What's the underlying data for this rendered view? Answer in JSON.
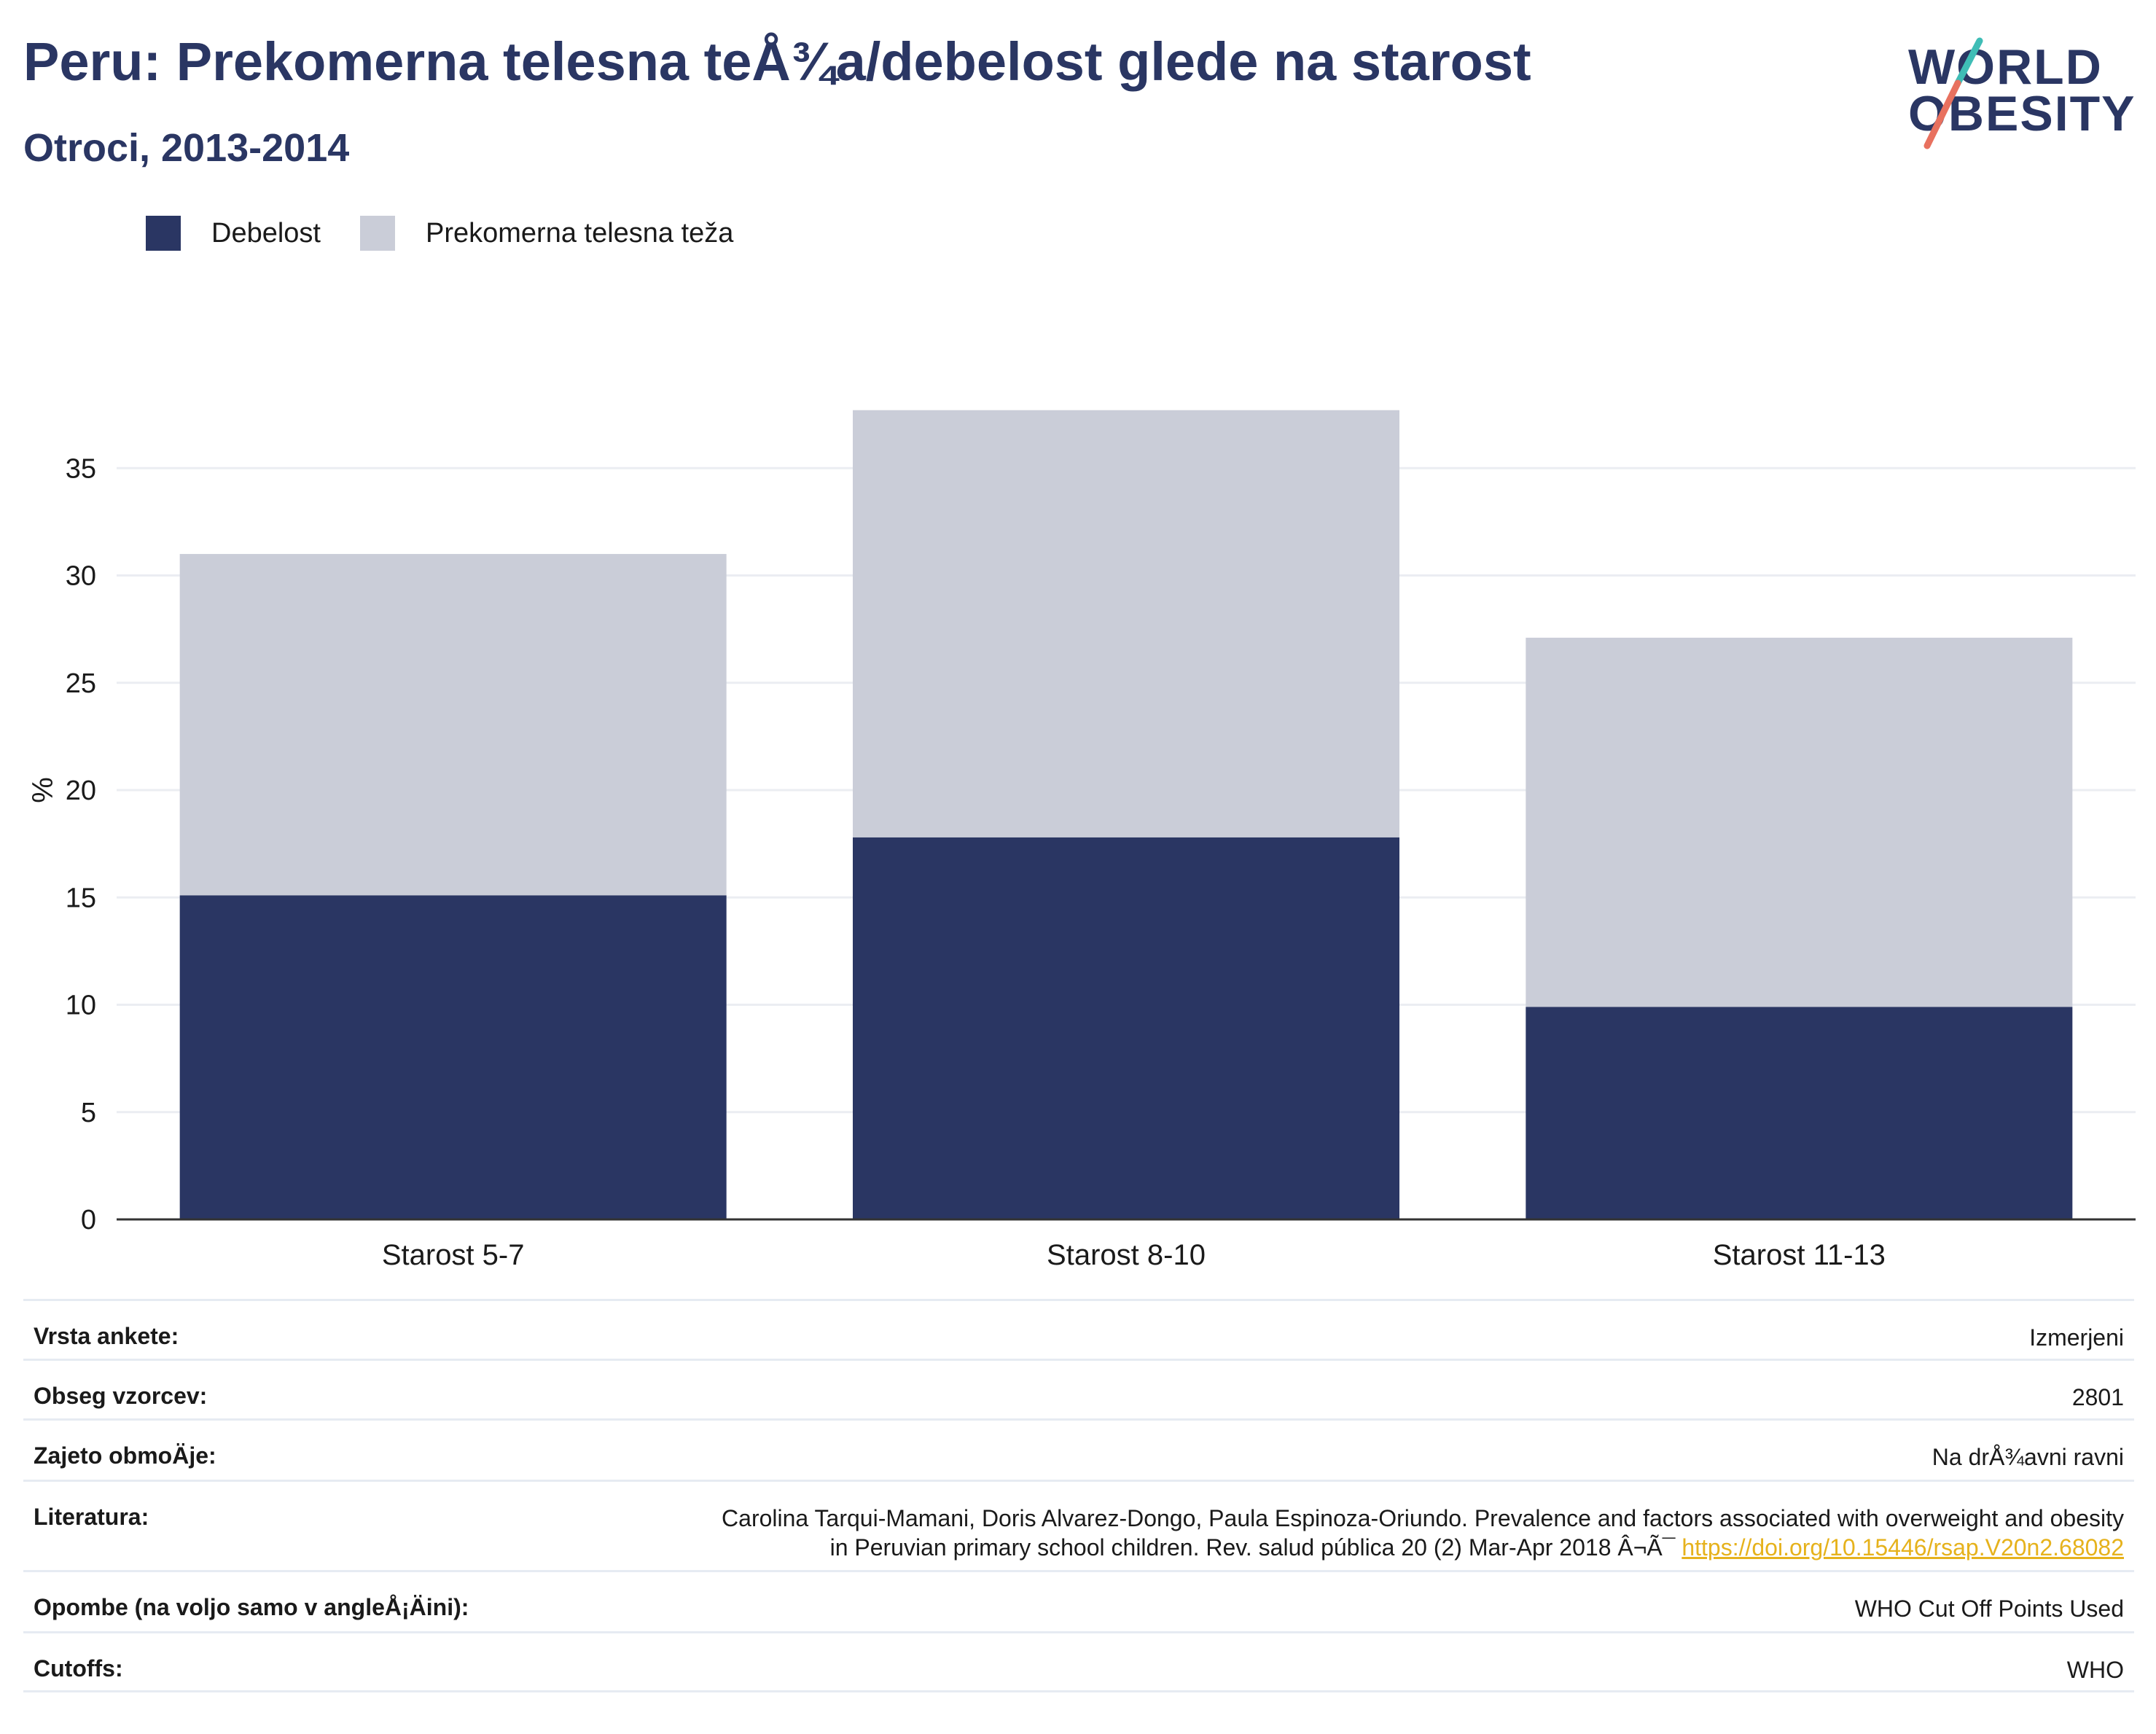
{
  "title": "Peru: Prekomerna telesna teÅ¾a/debelost glede na starost",
  "subtitle": "Otroci, 2013-2014",
  "logo": {
    "line1": "WORLD",
    "line2": "OBESITY"
  },
  "legend": [
    {
      "label": "Debelost",
      "color": "#2a3663"
    },
    {
      "label": "Prekomerna telesna teža",
      "color": "#cacdd8"
    }
  ],
  "chart_data": {
    "type": "bar",
    "stacked": true,
    "categories": [
      "Starost 5-7",
      "Starost 8-10",
      "Starost 11-13"
    ],
    "series": [
      {
        "name": "Debelost",
        "values": [
          15.1,
          17.8,
          9.9
        ],
        "color": "#2a3663"
      },
      {
        "name": "Prekomerna telesna teža",
        "values": [
          15.9,
          19.9,
          17.2
        ],
        "color": "#cacdd8"
      }
    ],
    "ylabel": "%",
    "yticks": [
      0,
      5,
      10,
      15,
      20,
      25,
      30,
      35
    ],
    "ylim": [
      0,
      39
    ],
    "grid": true,
    "legend_position": "top-left"
  },
  "meta": [
    {
      "key": "Vrsta ankete:",
      "value": "Izmerjeni"
    },
    {
      "key": "Obseg vzorcev:",
      "value": "2801"
    },
    {
      "key": "Zajeto obmoÄje:",
      "value": "Na drÅ¾avni ravni"
    },
    {
      "key": "Literatura:",
      "value_line1": "Carolina Tarqui-Mamani, Doris Alvarez-Dongo, Paula Espinoza-Oriundo. Prevalence and factors associated with overweight and obesity",
      "value_line2": "in Peruvian primary school children. Rev. salud pública 20 (2) Mar-Apr 2018 Â¬Ã¯",
      "link": "https://doi.org/10.15446/rsap.V20n2.68082"
    },
    {
      "key": "Opombe (na voljo samo v angleÅ¡Äini):",
      "value": "WHO Cut Off Points Used"
    },
    {
      "key": "Cutoffs:",
      "value": "WHO"
    }
  ]
}
